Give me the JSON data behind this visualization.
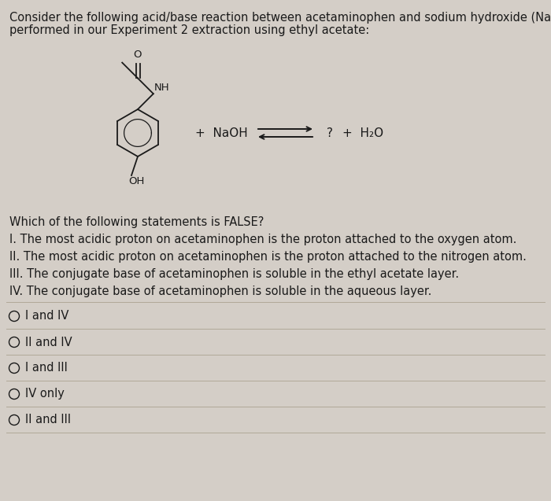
{
  "background_color": "#d4cec7",
  "text_color": "#1a1a1a",
  "title_line1": "Consider the following acid/base reaction between acetaminophen and sodium hydroxide (NaOH)",
  "title_line2": "performed in our Experiment 2 extraction using ethyl acetate:",
  "question_text": "Which of the following statements is FALSE?",
  "statements": [
    "I. The most acidic proton on acetaminophen is the proton attached to the oxygen atom.",
    "II. The most acidic proton on acetaminophen is the proton attached to the nitrogen atom.",
    "III. The conjugate base of acetaminophen is soluble in the ethyl acetate layer.",
    "IV. The conjugate base of acetaminophen is soluble in the aqueous layer."
  ],
  "choices": [
    "I and IV",
    "II and IV",
    "I and III",
    "IV only",
    "II and III"
  ],
  "font_size_title": 10.5,
  "font_size_body": 10.5,
  "font_size_mol": 9.5
}
